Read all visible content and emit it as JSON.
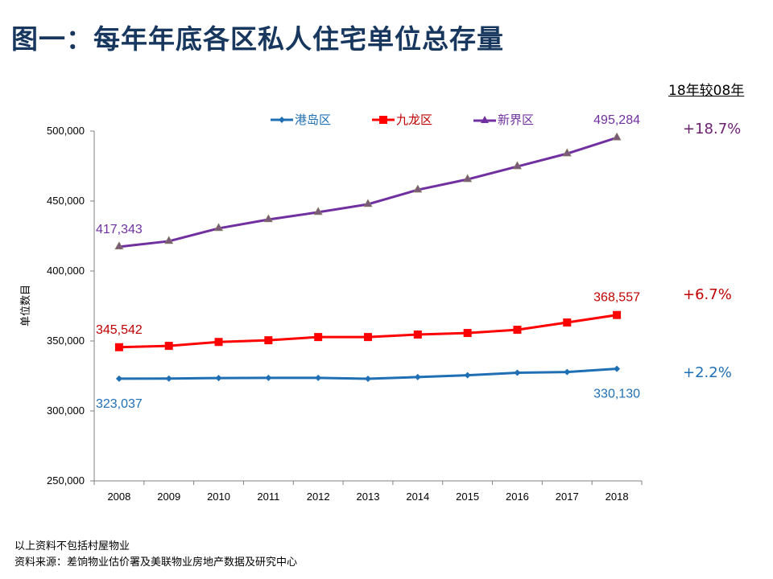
{
  "title": "图一：每年年底各区私人住宅单位总存量",
  "comparison": {
    "header": "18年较08年",
    "items": [
      {
        "series": "新界区",
        "value": "+18.7%",
        "color": "#6b1f6e"
      },
      {
        "series": "九龙区",
        "value": "+6.7%",
        "color": "#c00000"
      },
      {
        "series": "港岛区",
        "value": "+2.2%",
        "color": "#1f6fb5"
      }
    ]
  },
  "footnotes": [
    "以上资料不包括村屋物业",
    "资料来源：差饷物业估价署及美联物业房地产数据及研究中心"
  ],
  "chart_data": {
    "type": "line",
    "title": "每年年底各区私人住宅单位总存量",
    "xlabel": "",
    "ylabel": "单位数目",
    "categories": [
      "2008",
      "2009",
      "2010",
      "2011",
      "2012",
      "2013",
      "2014",
      "2015",
      "2016",
      "2017",
      "2018"
    ],
    "ylim": [
      250000,
      500000
    ],
    "yticks": [
      250000,
      300000,
      350000,
      400000,
      450000,
      500000
    ],
    "ytick_labels": [
      "250,000",
      "300,000",
      "350,000",
      "400,000",
      "450,000",
      "500,000"
    ],
    "grid": false,
    "legend_position": "top",
    "series": [
      {
        "name": "港岛区",
        "color": "#1f6fb5",
        "label_color": "#1f6fb5",
        "marker": "diamond",
        "values": [
          323037,
          323100,
          323500,
          323600,
          323600,
          323000,
          324200,
          325500,
          327300,
          327800,
          330130
        ],
        "data_labels": [
          {
            "index": 0,
            "text": "323,037",
            "position": "below"
          },
          {
            "index": 10,
            "text": "330,130",
            "position": "below"
          }
        ]
      },
      {
        "name": "九龙区",
        "color": "#ff0000",
        "label_color": "#c00000",
        "marker": "square",
        "values": [
          345542,
          346500,
          349300,
          350500,
          352800,
          352800,
          354600,
          355700,
          358000,
          363200,
          368557
        ],
        "data_labels": [
          {
            "index": 0,
            "text": "345,542",
            "position": "above"
          },
          {
            "index": 10,
            "text": "368,557",
            "position": "above"
          }
        ]
      },
      {
        "name": "新界区",
        "color": "#7030a0",
        "label_color": "#7030a0",
        "marker": "triangle",
        "values": [
          417343,
          421300,
          430500,
          436800,
          442000,
          447700,
          458000,
          465500,
          474700,
          483900,
          495284
        ],
        "data_labels": [
          {
            "index": 0,
            "text": "417,343",
            "position": "above"
          },
          {
            "index": 10,
            "text": "495,284",
            "position": "above"
          }
        ]
      }
    ]
  }
}
